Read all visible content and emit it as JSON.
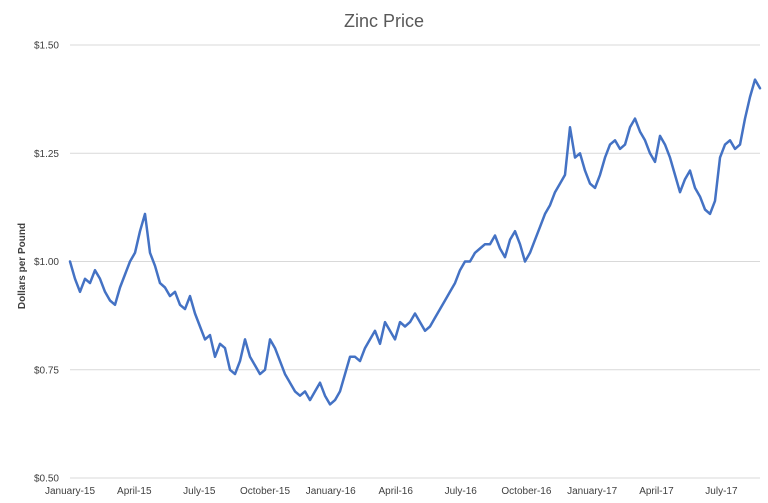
{
  "chart_data": {
    "type": "line",
    "title": "Zinc Price",
    "xlabel": "",
    "ylabel": "Dollars per Pound",
    "ylim": [
      0.5,
      1.5
    ],
    "y_ticks": [
      "$0.50",
      "$0.75",
      "$1.00",
      "$1.25",
      "$1.50"
    ],
    "y_tick_values": [
      0.5,
      0.75,
      1.0,
      1.25,
      1.5
    ],
    "x_tick_labels": [
      "January-15",
      "April-15",
      "July-15",
      "October-15",
      "January-16",
      "April-16",
      "July-16",
      "October-16",
      "January-17",
      "April-17",
      "July-17"
    ],
    "x_tick_dates": [
      "2015-01",
      "2015-04",
      "2015-07",
      "2015-10",
      "2016-01",
      "2016-04",
      "2016-07",
      "2016-10",
      "2017-01",
      "2017-04",
      "2017-07"
    ],
    "grid": true,
    "legend": "none",
    "colors": {
      "line": "#4472C4",
      "grid": "#D9D9D9",
      "title": "#595959",
      "text": "#404040"
    },
    "series": [
      {
        "x": [
          "2015-01-01",
          "2015-01-08",
          "2015-01-15",
          "2015-01-22",
          "2015-01-29",
          "2015-02-05",
          "2015-02-12",
          "2015-02-19",
          "2015-02-26",
          "2015-03-05",
          "2015-03-12",
          "2015-03-19",
          "2015-03-26",
          "2015-04-02",
          "2015-04-09",
          "2015-04-16",
          "2015-04-23",
          "2015-04-30",
          "2015-05-07",
          "2015-05-14",
          "2015-05-21",
          "2015-05-28",
          "2015-06-04",
          "2015-06-11",
          "2015-06-18",
          "2015-06-25",
          "2015-07-02",
          "2015-07-09",
          "2015-07-16",
          "2015-07-23",
          "2015-07-30",
          "2015-08-06",
          "2015-08-13",
          "2015-08-20",
          "2015-08-27",
          "2015-09-03",
          "2015-09-10",
          "2015-09-17",
          "2015-09-24",
          "2015-10-01",
          "2015-10-08",
          "2015-10-15",
          "2015-10-22",
          "2015-10-29",
          "2015-11-05",
          "2015-11-12",
          "2015-11-19",
          "2015-11-26",
          "2015-12-03",
          "2015-12-10",
          "2015-12-17",
          "2015-12-24",
          "2015-12-31",
          "2016-01-07",
          "2016-01-14",
          "2016-01-21",
          "2016-01-28",
          "2016-02-04",
          "2016-02-11",
          "2016-02-18",
          "2016-02-25",
          "2016-03-03",
          "2016-03-10",
          "2016-03-17",
          "2016-03-24",
          "2016-03-31",
          "2016-04-07",
          "2016-04-14",
          "2016-04-21",
          "2016-04-28",
          "2016-05-05",
          "2016-05-12",
          "2016-05-19",
          "2016-05-26",
          "2016-06-02",
          "2016-06-09",
          "2016-06-16",
          "2016-06-23",
          "2016-06-30",
          "2016-07-07",
          "2016-07-14",
          "2016-07-21",
          "2016-07-28",
          "2016-08-04",
          "2016-08-11",
          "2016-08-18",
          "2016-08-25",
          "2016-09-01",
          "2016-09-08",
          "2016-09-15",
          "2016-09-22",
          "2016-09-29",
          "2016-10-06",
          "2016-10-13",
          "2016-10-20",
          "2016-10-27",
          "2016-11-03",
          "2016-11-10",
          "2016-11-17",
          "2016-11-24",
          "2016-12-01",
          "2016-12-08",
          "2016-12-15",
          "2016-12-22",
          "2016-12-29",
          "2017-01-05",
          "2017-01-12",
          "2017-01-19",
          "2017-01-26",
          "2017-02-02",
          "2017-02-09",
          "2017-02-16",
          "2017-02-23",
          "2017-03-02",
          "2017-03-09",
          "2017-03-16",
          "2017-03-23",
          "2017-03-30",
          "2017-04-06",
          "2017-04-13",
          "2017-04-20",
          "2017-04-27",
          "2017-05-04",
          "2017-05-11",
          "2017-05-18",
          "2017-05-25",
          "2017-06-01",
          "2017-06-08",
          "2017-06-15",
          "2017-06-22",
          "2017-06-29",
          "2017-07-06",
          "2017-07-13",
          "2017-07-20",
          "2017-07-27",
          "2017-08-03",
          "2017-08-10",
          "2017-08-17",
          "2017-08-24"
        ],
        "values": [
          1.0,
          0.96,
          0.93,
          0.96,
          0.95,
          0.98,
          0.96,
          0.93,
          0.91,
          0.9,
          0.94,
          0.97,
          1.0,
          1.02,
          1.07,
          1.11,
          1.02,
          0.99,
          0.95,
          0.94,
          0.92,
          0.93,
          0.9,
          0.89,
          0.92,
          0.88,
          0.85,
          0.82,
          0.83,
          0.78,
          0.81,
          0.8,
          0.75,
          0.74,
          0.77,
          0.82,
          0.78,
          0.76,
          0.74,
          0.75,
          0.82,
          0.8,
          0.77,
          0.74,
          0.72,
          0.7,
          0.69,
          0.7,
          0.68,
          0.7,
          0.72,
          0.69,
          0.67,
          0.68,
          0.7,
          0.74,
          0.78,
          0.78,
          0.77,
          0.8,
          0.82,
          0.84,
          0.81,
          0.86,
          0.84,
          0.82,
          0.86,
          0.85,
          0.86,
          0.88,
          0.86,
          0.84,
          0.85,
          0.87,
          0.89,
          0.91,
          0.93,
          0.95,
          0.98,
          1.0,
          1.0,
          1.02,
          1.03,
          1.04,
          1.04,
          1.06,
          1.03,
          1.01,
          1.05,
          1.07,
          1.04,
          1.0,
          1.02,
          1.05,
          1.08,
          1.11,
          1.13,
          1.16,
          1.18,
          1.2,
          1.31,
          1.24,
          1.25,
          1.21,
          1.18,
          1.17,
          1.2,
          1.24,
          1.27,
          1.28,
          1.26,
          1.27,
          1.31,
          1.33,
          1.3,
          1.28,
          1.25,
          1.23,
          1.29,
          1.27,
          1.24,
          1.2,
          1.16,
          1.19,
          1.21,
          1.17,
          1.15,
          1.12,
          1.11,
          1.14,
          1.24,
          1.27,
          1.28,
          1.26,
          1.27,
          1.33,
          1.38,
          1.42,
          1.4
        ]
      }
    ]
  }
}
